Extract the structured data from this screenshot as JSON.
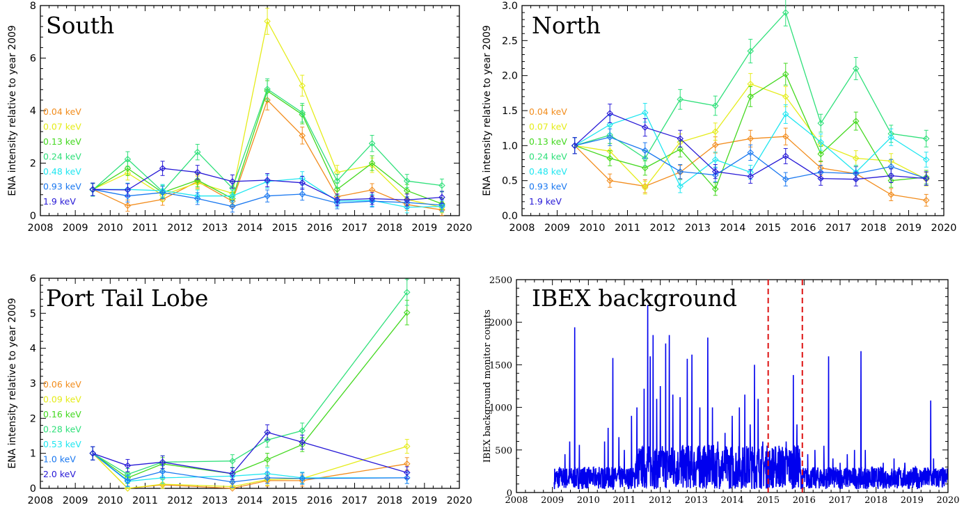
{
  "colors": {
    "orange": "#f28c1c",
    "yellow": "#e5ec1a",
    "green": "#43d81f",
    "lightgreen": "#2fe07a",
    "cyan": "#20e6f0",
    "blue": "#1a78f0",
    "darkblue": "#2618d6",
    "background": "#0000ee",
    "marker": "#dd1111"
  },
  "chart_data": [
    {
      "type": "line",
      "title": "South",
      "ylabel": "ENA intensity relative to year 2009",
      "xlim": [
        2008,
        2020
      ],
      "ylim": [
        0,
        8
      ],
      "xticks": [
        "2008",
        "2009",
        "2010",
        "2011",
        "2012",
        "2013",
        "2014",
        "2015",
        "2016",
        "2017",
        "2018",
        "2019",
        "2020"
      ],
      "yticks": [
        "0",
        "2",
        "4",
        "6",
        "8"
      ],
      "x": [
        2009.5,
        2010.5,
        2011.5,
        2012.5,
        2013.5,
        2014.5,
        2015.5,
        2016.5,
        2017.5,
        2018.5,
        2019.5
      ],
      "series": [
        {
          "name": "0.04 keV",
          "color": "orange",
          "values": [
            1.0,
            0.38,
            0.62,
            1.3,
            0.55,
            4.4,
            3.05,
            0.72,
            0.98,
            0.42,
            0.22
          ]
        },
        {
          "name": "0.07 keV",
          "color": "yellow",
          "values": [
            1.0,
            1.62,
            0.78,
            1.25,
            0.85,
            7.4,
            4.95,
            1.65,
            1.92,
            0.62,
            0.32
          ]
        },
        {
          "name": "0.13 keV",
          "color": "green",
          "values": [
            1.0,
            1.8,
            0.88,
            1.35,
            0.65,
            4.75,
            3.85,
            1.0,
            2.0,
            0.95,
            0.45
          ]
        },
        {
          "name": "0.24 keV",
          "color": "lightgreen",
          "values": [
            0.98,
            2.15,
            0.92,
            2.42,
            1.05,
            4.82,
            3.92,
            1.32,
            2.75,
            1.32,
            1.15
          ]
        },
        {
          "name": "0.48 keV",
          "color": "cyan",
          "values": [
            1.0,
            1.0,
            0.95,
            0.75,
            0.75,
            1.3,
            1.42,
            0.55,
            0.58,
            0.32,
            0.35
          ]
        },
        {
          "name": "0.93 keV",
          "color": "blue",
          "values": [
            1.0,
            0.75,
            0.88,
            0.65,
            0.35,
            0.75,
            0.82,
            0.48,
            0.55,
            0.5,
            0.4
          ]
        },
        {
          "name": "1.9 keV",
          "color": "darkblue",
          "values": [
            1.0,
            0.98,
            1.8,
            1.65,
            1.3,
            1.35,
            1.25,
            0.6,
            0.65,
            0.6,
            0.7
          ]
        }
      ]
    },
    {
      "type": "line",
      "title": "North",
      "ylabel": "ENA intensity relative to year 2009",
      "xlim": [
        2008,
        2020
      ],
      "ylim": [
        0,
        3
      ],
      "xticks": [
        "2008",
        "2009",
        "2010",
        "2011",
        "2012",
        "2013",
        "2014",
        "2015",
        "2016",
        "2017",
        "2018",
        "2019",
        "2020"
      ],
      "yticks": [
        "0.0",
        "0.5",
        "1.0",
        "1.5",
        "2.0",
        "2.5",
        "3.0"
      ],
      "x": [
        2009.5,
        2010.5,
        2011.5,
        2012.5,
        2013.5,
        2014.5,
        2015.5,
        2016.5,
        2017.5,
        2018.5,
        2019.5
      ],
      "series": [
        {
          "name": "0.04 keV",
          "color": "orange",
          "values": [
            1.0,
            0.5,
            0.42,
            0.62,
            1.01,
            1.1,
            1.13,
            0.68,
            0.6,
            0.3,
            0.22
          ]
        },
        {
          "name": "0.07 keV",
          "color": "yellow",
          "values": [
            1.0,
            0.92,
            0.4,
            1.05,
            1.2,
            1.88,
            1.7,
            1.02,
            0.82,
            0.78,
            0.52
          ]
        },
        {
          "name": "0.13 keV",
          "color": "green",
          "values": [
            1.0,
            0.82,
            0.68,
            0.95,
            0.38,
            1.7,
            2.02,
            0.88,
            1.35,
            0.5,
            0.55
          ]
        },
        {
          "name": "0.24 keV",
          "color": "lightgreen",
          "values": [
            1.0,
            1.15,
            0.82,
            1.66,
            1.57,
            2.35,
            2.9,
            1.32,
            2.1,
            1.17,
            1.1
          ]
        },
        {
          "name": "0.48 keV",
          "color": "cyan",
          "values": [
            1.0,
            1.3,
            1.47,
            0.42,
            0.8,
            0.62,
            1.45,
            1.05,
            0.62,
            1.12,
            0.8
          ]
        },
        {
          "name": "0.93 keV",
          "color": "blue",
          "values": [
            1.0,
            1.12,
            0.93,
            0.63,
            0.58,
            0.9,
            0.52,
            0.62,
            0.6,
            0.7,
            0.53
          ]
        },
        {
          "name": "1.9 keV",
          "color": "darkblue",
          "values": [
            1.0,
            1.46,
            1.26,
            1.1,
            0.63,
            0.56,
            0.85,
            0.53,
            0.52,
            0.57,
            0.53
          ]
        }
      ]
    },
    {
      "type": "line",
      "title": "Port Tail Lobe",
      "ylabel": "ENA intensity relative to year 2009",
      "xlim": [
        2008,
        2020
      ],
      "ylim": [
        0,
        6
      ],
      "xticks": [
        "2008",
        "2009",
        "2010",
        "2011",
        "2012",
        "2013",
        "2014",
        "2015",
        "2016",
        "2017",
        "2018",
        "2019",
        "2020"
      ],
      "yticks": [
        "0",
        "1",
        "2",
        "3",
        "4",
        "5",
        "6"
      ],
      "x": [
        2009.5,
        2010.5,
        2011.5,
        2013.5,
        2014.5,
        2015.5,
        2018.5
      ],
      "series": [
        {
          "name": "0.06 keV",
          "color": "orange",
          "values": [
            1.0,
            0.0,
            0.1,
            0.0,
            0.22,
            0.22,
            0.7
          ]
        },
        {
          "name": "0.09 keV",
          "color": "yellow",
          "values": [
            1.0,
            0.0,
            0.12,
            0.05,
            0.25,
            0.28,
            1.2
          ]
        },
        {
          "name": "0.16 keV",
          "color": "green",
          "values": [
            1.0,
            0.3,
            0.7,
            0.42,
            0.82,
            1.25,
            5.02
          ]
        },
        {
          "name": "0.28 keV",
          "color": "lightgreen",
          "values": [
            1.0,
            0.4,
            0.75,
            0.78,
            1.38,
            1.65,
            5.6
          ]
        },
        {
          "name": "0.53 keV",
          "color": "cyan",
          "values": [
            1.0,
            0.2,
            0.3,
            0.35,
            0.42,
            0.3,
            0.3
          ]
        },
        {
          "name": "1.0 keV",
          "color": "blue",
          "values": [
            1.0,
            0.22,
            0.48,
            0.18,
            0.3,
            0.28,
            0.3
          ]
        },
        {
          "name": "2.0 keV",
          "color": "darkblue",
          "values": [
            1.0,
            0.65,
            0.75,
            0.42,
            1.6,
            1.32,
            0.45
          ]
        }
      ]
    },
    {
      "type": "line",
      "title": "IBEX background",
      "ylabel": "IBEX background monitor counts",
      "xlim": [
        2008,
        2020
      ],
      "ylim": [
        0,
        2500
      ],
      "xticks": [
        "2008",
        "2009",
        "2010",
        "2011",
        "2012",
        "2013",
        "2014",
        "2015",
        "2016",
        "2017",
        "2018",
        "2019",
        "2020"
      ],
      "yticks": [
        "0",
        "500",
        "1000",
        "1500",
        "2000",
        "2500"
      ],
      "markers": [
        2015.0,
        2015.95
      ],
      "peaks": [
        [
          2009.05,
          120
        ],
        [
          2009.2,
          300
        ],
        [
          2009.35,
          450
        ],
        [
          2009.48,
          600
        ],
        [
          2009.62,
          1940
        ],
        [
          2009.75,
          560
        ],
        [
          2009.9,
          300
        ],
        [
          2010.1,
          200
        ],
        [
          2010.3,
          300
        ],
        [
          2010.45,
          600
        ],
        [
          2010.55,
          760
        ],
        [
          2010.68,
          1580
        ],
        [
          2010.85,
          650
        ],
        [
          2011.0,
          500
        ],
        [
          2011.2,
          900
        ],
        [
          2011.35,
          1000
        ],
        [
          2011.55,
          1220
        ],
        [
          2011.65,
          2200
        ],
        [
          2011.72,
          1600
        ],
        [
          2011.8,
          1850
        ],
        [
          2011.9,
          1100
        ],
        [
          2012.0,
          1250
        ],
        [
          2012.15,
          1750
        ],
        [
          2012.25,
          1850
        ],
        [
          2012.35,
          1150
        ],
        [
          2012.55,
          1120
        ],
        [
          2012.75,
          1570
        ],
        [
          2012.88,
          1620
        ],
        [
          2013.1,
          1000
        ],
        [
          2013.32,
          1820
        ],
        [
          2013.45,
          1000
        ],
        [
          2013.6,
          600
        ],
        [
          2013.8,
          700
        ],
        [
          2014.0,
          900
        ],
        [
          2014.2,
          1000
        ],
        [
          2014.35,
          1150
        ],
        [
          2014.5,
          800
        ],
        [
          2014.62,
          1500
        ],
        [
          2014.72,
          1100
        ],
        [
          2014.85,
          600
        ],
        [
          2014.95,
          400
        ],
        [
          2015.1,
          400
        ],
        [
          2015.3,
          550
        ],
        [
          2015.5,
          600
        ],
        [
          2015.7,
          1380
        ],
        [
          2015.8,
          800
        ],
        [
          2015.92,
          200
        ],
        [
          2016.1,
          450
        ],
        [
          2016.3,
          500
        ],
        [
          2016.55,
          550
        ],
        [
          2016.68,
          1600
        ],
        [
          2016.8,
          400
        ],
        [
          2017.0,
          350
        ],
        [
          2017.2,
          450
        ],
        [
          2017.4,
          500
        ],
        [
          2017.58,
          1660
        ],
        [
          2017.7,
          500
        ],
        [
          2017.9,
          300
        ],
        [
          2018.2,
          350
        ],
        [
          2018.5,
          400
        ],
        [
          2018.8,
          350
        ],
        [
          2019.1,
          300
        ],
        [
          2019.35,
          280
        ],
        [
          2019.52,
          1080
        ],
        [
          2019.6,
          400
        ],
        [
          2019.8,
          250
        ],
        [
          2019.98,
          150
        ]
      ]
    }
  ]
}
